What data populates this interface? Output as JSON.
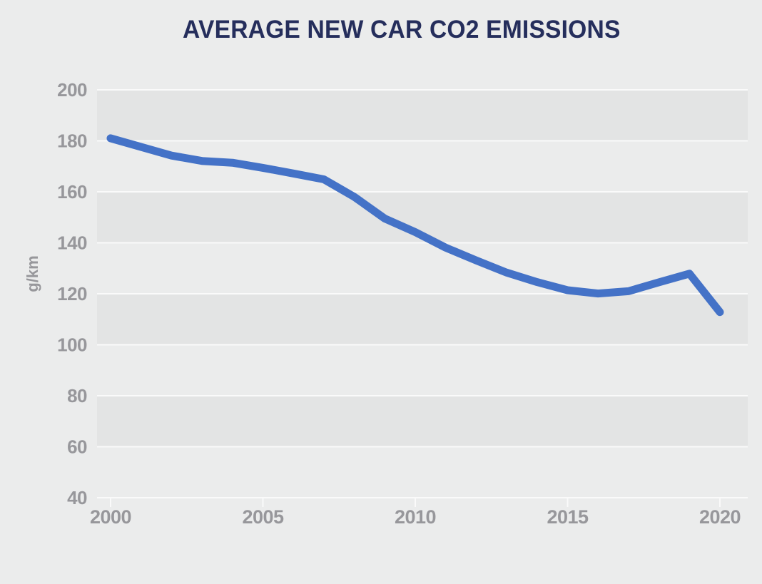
{
  "title": "AVERAGE NEW CAR CO2 EMISSIONS",
  "colors": {
    "page_background": "#ebecec",
    "band_dark": "#e3e4e4",
    "band_light": "#ebecec",
    "gridline": "#fafafa",
    "axis": "#fafafa",
    "tick_label": "#97979b",
    "title_text": "#252e5c",
    "line": "#4472c7"
  },
  "chart_data": {
    "type": "line",
    "title": "AVERAGE NEW CAR CO2 EMISSIONS",
    "xlabel": "",
    "ylabel": "g/km",
    "ylim": [
      40,
      200
    ],
    "xlim": [
      2000,
      2020
    ],
    "y_ticks": [
      200,
      180,
      160,
      140,
      120,
      100,
      80,
      60,
      40
    ],
    "x_ticks": [
      2000,
      2005,
      2010,
      2015,
      2020
    ],
    "grid": "horizontal white gridlines with alternating grey background bands",
    "legend": "none",
    "x": [
      2000,
      2001,
      2002,
      2003,
      2004,
      2005,
      2006,
      2007,
      2008,
      2009,
      2010,
      2011,
      2012,
      2013,
      2014,
      2015,
      2016,
      2017,
      2018,
      2019,
      2020
    ],
    "series": [
      {
        "name": "Average new car CO2 emissions (g/km)",
        "values": [
          181.0,
          177.6,
          174.2,
          172.1,
          171.4,
          169.4,
          167.2,
          164.9,
          158.0,
          149.5,
          144.2,
          138.1,
          133.1,
          128.3,
          124.6,
          121.4,
          120.1,
          121.0,
          124.5,
          127.9,
          112.8
        ]
      }
    ]
  }
}
